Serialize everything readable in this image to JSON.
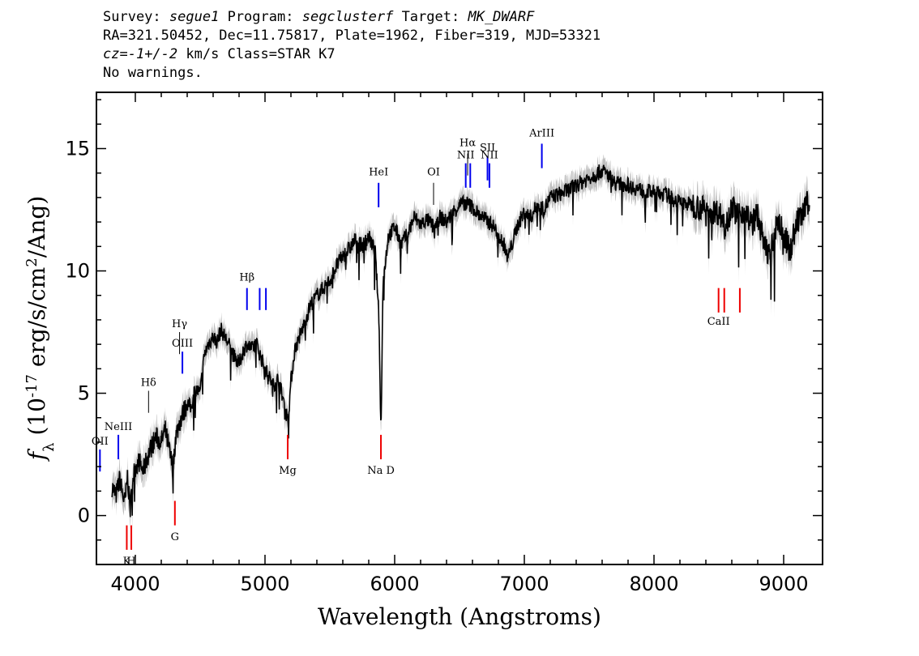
{
  "header": {
    "survey_label": "Survey:",
    "survey": "segue1",
    "program_label": "Program:",
    "program": "segclusterf",
    "target_label": "Target:",
    "target": "MK_DWARF",
    "coords": "RA=321.50452, Dec=11.75817, Plate=1962, Fiber=319, MJD=53321",
    "cz_label": "cz=",
    "cz": "-1+/-2",
    "cz_unit": "km/s",
    "class": "Class=STAR K7",
    "warnings": "No warnings."
  },
  "chart_data": {
    "type": "line",
    "title": "",
    "xlabel": "Wavelength (Angstroms)",
    "ylabel": "f_λ (10^-17 erg/s/cm^2/Ang)",
    "xlim": [
      3700,
      9300
    ],
    "ylim": [
      -2,
      17.3
    ],
    "x_ticks": [
      4000,
      5000,
      6000,
      7000,
      8000,
      9000
    ],
    "y_ticks": [
      0,
      5,
      10,
      15
    ],
    "colors": {
      "spectrum": "#000000",
      "error": "#bfbfbf",
      "emission": "#0000ee",
      "absorption": "#ee0000",
      "other": "#000000"
    },
    "series": [
      {
        "x": [
          3820,
          3850,
          3880,
          3900,
          3920,
          3940,
          3960,
          3980,
          4000,
          4030,
          4060,
          4100,
          4130,
          4160,
          4200,
          4230,
          4260,
          4290,
          4310,
          4340,
          4370,
          4400,
          4430,
          4460,
          4500,
          4530,
          4560,
          4600,
          4630,
          4660,
          4700,
          4730,
          4760,
          4800,
          4830,
          4860,
          4900,
          4930,
          4960,
          5000,
          5030,
          5060,
          5100,
          5130,
          5160,
          5180,
          5200,
          5230,
          5260,
          5300,
          5350,
          5400,
          5450,
          5500,
          5550,
          5600,
          5650,
          5700,
          5750,
          5800,
          5850,
          5880,
          5890,
          5896,
          5910,
          5950,
          6000,
          6050,
          6100,
          6150,
          6200,
          6250,
          6300,
          6350,
          6400,
          6450,
          6500,
          6550,
          6600,
          6650,
          6700,
          6750,
          6800,
          6850,
          6870,
          6900,
          6950,
          7000,
          7050,
          7100,
          7150,
          7200,
          7300,
          7400,
          7500,
          7600,
          7650,
          7700,
          7800,
          7900,
          8000,
          8100,
          8200,
          8300,
          8400,
          8500,
          8550,
          8600,
          8650,
          8700,
          8750,
          8800,
          8850,
          8900,
          8950,
          9000,
          9050,
          9100,
          9150,
          9200
        ],
        "y": [
          1.2,
          0.8,
          1.5,
          0.9,
          0.5,
          1.6,
          0.2,
          1.5,
          2.0,
          2.2,
          1.8,
          2.5,
          2.9,
          3.2,
          3.0,
          3.5,
          2.7,
          1.9,
          3.2,
          3.8,
          4.2,
          4.6,
          4.4,
          5.2,
          5.0,
          6.5,
          7.0,
          7.3,
          7.1,
          7.6,
          7.2,
          6.9,
          6.5,
          6.2,
          6.7,
          7.0,
          6.8,
          7.1,
          6.6,
          6.0,
          5.7,
          5.3,
          5.6,
          5.0,
          4.2,
          4.0,
          5.5,
          6.8,
          7.2,
          7.8,
          8.6,
          9.0,
          9.3,
          9.6,
          10.2,
          10.6,
          10.9,
          11.3,
          11.0,
          11.4,
          10.8,
          8.0,
          4.2,
          4.0,
          9.5,
          11.4,
          11.8,
          11.1,
          11.5,
          12.2,
          11.9,
          12.1,
          11.8,
          12.2,
          12.0,
          12.4,
          12.7,
          12.8,
          12.6,
          12.3,
          12.1,
          11.9,
          11.5,
          11.0,
          10.5,
          11.0,
          11.9,
          12.4,
          12.2,
          12.7,
          12.5,
          13.0,
          13.2,
          13.5,
          13.8,
          14.1,
          13.9,
          13.6,
          13.5,
          13.3,
          13.2,
          13.1,
          12.8,
          12.7,
          12.5,
          12.4,
          11.9,
          12.6,
          12.3,
          12.5,
          11.9,
          12.3,
          11.0,
          10.7,
          12.1,
          11.5,
          10.8,
          12.0,
          12.3,
          13.0
        ]
      }
    ],
    "lines": [
      {
        "label": "OII",
        "wave": 3727,
        "kind": "emission",
        "y0": 1.8,
        "y1": 2.7,
        "ly": 2.9
      },
      {
        "label": "NeIII",
        "wave": 3869,
        "kind": "emission",
        "y0": 2.3,
        "y1": 3.3,
        "ly": 3.5
      },
      {
        "label": "Hδ",
        "wave": 4102,
        "kind": "other",
        "y0": 4.2,
        "y1": 5.1,
        "ly": 5.3
      },
      {
        "label": "Hγ",
        "wave": 4341,
        "kind": "other",
        "y0": 6.6,
        "y1": 7.5,
        "ly": 7.7
      },
      {
        "label": "OIII",
        "wave": 4363,
        "kind": "emission",
        "y0": 5.8,
        "y1": 6.7,
        "ly": 6.9
      },
      {
        "label": "Hβ",
        "wave": 4861,
        "kind": "emission",
        "y0": 8.4,
        "y1": 9.3,
        "ly": 9.6
      },
      {
        "label": "OIII",
        "wave": 4959,
        "kind": "emission",
        "y0": 8.4,
        "y1": 9.3,
        "ly": null
      },
      {
        "label": "",
        "wave": 5007,
        "kind": "emission",
        "y0": 8.4,
        "y1": 9.3,
        "ly": 9.6
      },
      {
        "label": "HeI",
        "wave": 5876,
        "kind": "emission",
        "y0": 12.6,
        "y1": 13.6,
        "ly": 13.9
      },
      {
        "label": "OI",
        "wave": 6300,
        "kind": "other",
        "y0": 12.7,
        "y1": 13.6,
        "ly": 13.9
      },
      {
        "label": "NII",
        "wave": 6548,
        "kind": "emission",
        "y0": 13.4,
        "y1": 14.4,
        "ly": 14.6
      },
      {
        "label": "Hα",
        "wave": 6563,
        "kind": "other",
        "y0": 13.9,
        "y1": 14.8,
        "ly": 15.1
      },
      {
        "label": "NII",
        "wave": 6583,
        "kind": "emission",
        "y0": 13.4,
        "y1": 14.4,
        "ly": null
      },
      {
        "label": "SII",
        "wave": 6716,
        "kind": "emission",
        "y0": 13.7,
        "y1": 14.7,
        "ly": 14.9
      },
      {
        "label": "NII",
        "wave": 6731,
        "kind": "emission",
        "y0": 13.4,
        "y1": 14.4,
        "ly": 14.6
      },
      {
        "label": "ArIII",
        "wave": 7135,
        "kind": "emission",
        "y0": 14.2,
        "y1": 15.2,
        "ly": 15.5
      },
      {
        "label": "Mg",
        "wave": 5175,
        "kind": "absorption",
        "y0": 2.3,
        "y1": 3.3,
        "ly": 1.7
      },
      {
        "label": "Na D",
        "wave": 5894,
        "kind": "absorption",
        "y0": 2.3,
        "y1": 3.3,
        "ly": 1.7
      },
      {
        "label": "G",
        "wave": 4305,
        "kind": "absorption",
        "y0": -0.4,
        "y1": 0.6,
        "ly": -1.0
      },
      {
        "label": "K",
        "wave": 3934,
        "kind": "absorption",
        "y0": -1.4,
        "y1": -0.4,
        "ly": -2.0
      },
      {
        "label": "H",
        "wave": 3969,
        "kind": "absorption",
        "y0": -1.4,
        "y1": -0.4,
        "ly": -2.0
      },
      {
        "label": "CaII",
        "wave": 8498,
        "kind": "absorption",
        "y0": 8.3,
        "y1": 9.3,
        "ly": 7.8
      },
      {
        "label": "",
        "wave": 8542,
        "kind": "absorption",
        "y0": 8.3,
        "y1": 9.3,
        "ly": null
      },
      {
        "label": "",
        "wave": 8662,
        "kind": "absorption",
        "y0": 8.3,
        "y1": 9.3,
        "ly": null
      }
    ]
  }
}
